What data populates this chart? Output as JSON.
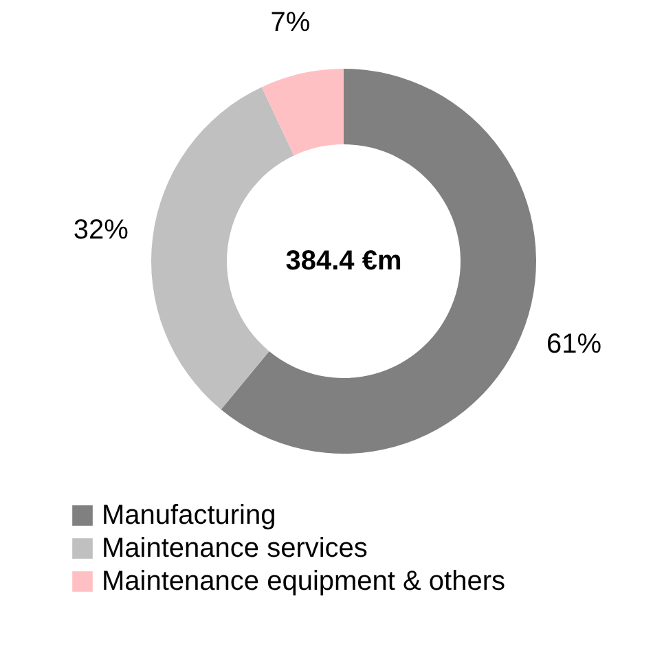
{
  "chart_data": {
    "type": "donut",
    "categories": [
      "Manufacturing",
      "Maintenance services",
      "Maintenance equipment & others"
    ],
    "values": [
      61,
      32,
      7
    ],
    "colors": [
      "#808080",
      "#c0c0c0",
      "#ffc0c4"
    ],
    "value_labels": [
      "61%",
      "32%",
      "7%"
    ],
    "legend": "bottom left",
    "annotations": [
      "384.4 €m"
    ]
  }
}
